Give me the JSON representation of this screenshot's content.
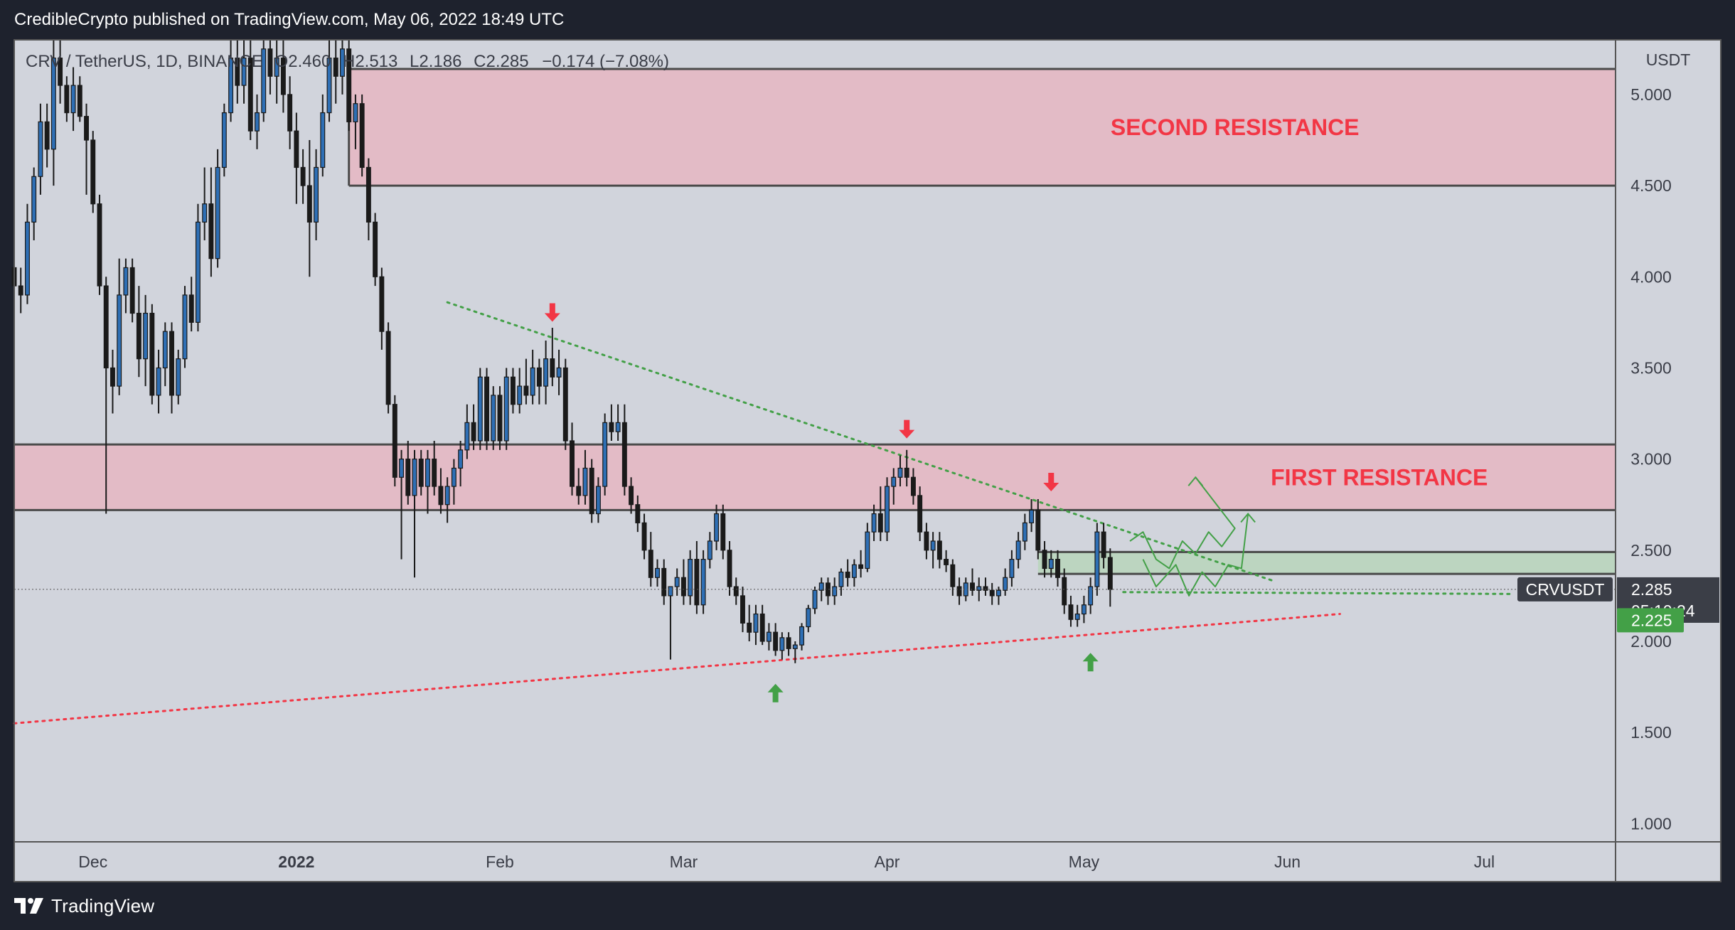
{
  "header": {
    "publisher": "CredibleCrypto published on TradingView.com, May 06, 2022 18:49 UTC"
  },
  "footer": {
    "brand": "TradingView"
  },
  "colors": {
    "background": "#1e222d",
    "pane": "#d1d4dc",
    "up_candle": "#2e6fb5",
    "down_candle": "#1a1a1a",
    "resistance_zone": "#e8b3bf",
    "support_zone": "#b7d4b9",
    "annotation_red": "#f23645",
    "annotation_green": "#43a047",
    "price_tag": "#3b3e47",
    "price_tag_green": "#43a047"
  },
  "chart_data": {
    "type": "candlestick",
    "symbol_line": {
      "symbol": "CRV / TetherUS, 1D, BINANCE",
      "open_label": "O",
      "open": "2.460",
      "high_label": "H",
      "high": "2.513",
      "low_label": "L",
      "low": "2.186",
      "close_label": "C",
      "close": "2.285",
      "change": "−0.174 (−7.08%)"
    },
    "y_axis": {
      "unit": "USDT",
      "range": [
        0.9,
        5.3
      ],
      "ticks": [
        "5.000",
        "4.500",
        "4.000",
        "3.500",
        "3.000",
        "2.500",
        "2.000",
        "1.500",
        "1.000"
      ],
      "tick_values": [
        5.0,
        4.5,
        4.0,
        3.5,
        3.0,
        2.5,
        2.0,
        1.5,
        1.0
      ]
    },
    "x_axis": {
      "labels": [
        "Dec",
        "2022",
        "Feb",
        "Mar",
        "Apr",
        "May",
        "Jun",
        "Jul"
      ],
      "label_days": [
        6,
        37,
        68,
        96,
        127,
        157,
        188,
        218
      ],
      "bold": [
        false,
        true,
        false,
        false,
        false,
        false,
        false,
        false
      ],
      "day_range": [
        -6,
        238
      ]
    },
    "last_price": {
      "label": "CRVUSDT",
      "value": "2.285",
      "price": 2.285,
      "countdown": "05:10:24"
    },
    "level_tag": {
      "value": "2.225",
      "price": 2.225
    },
    "zones": [
      {
        "label": "SECOND RESISTANCE",
        "low": 4.5,
        "high": 5.14,
        "start_day": 45,
        "label_day": 180
      },
      {
        "label": "FIRST RESISTANCE",
        "low": 2.72,
        "high": 3.08,
        "start_day": -6,
        "label_day": 202
      }
    ],
    "support_box": {
      "low": 2.37,
      "high": 2.49,
      "start_day": 150,
      "end_day": 238
    },
    "trendlines": [
      {
        "name": "descending",
        "color": "#43a047",
        "from": [
          60,
          3.86
        ],
        "to": [
          186,
          2.33
        ]
      },
      {
        "name": "ascending",
        "color": "#f23645",
        "from": [
          -6,
          1.55
        ],
        "to": [
          196,
          2.15
        ]
      },
      {
        "name": "horizontal",
        "color": "#43a047",
        "from": [
          163,
          2.27
        ],
        "to": [
          222,
          2.26
        ]
      }
    ],
    "arrows": [
      {
        "dir": "down",
        "day": 76,
        "price": 3.8,
        "color": "#f23645"
      },
      {
        "dir": "down",
        "day": 130,
        "price": 3.16,
        "color": "#f23645"
      },
      {
        "dir": "down",
        "day": 152,
        "price": 2.87,
        "color": "#f23645"
      },
      {
        "dir": "up",
        "day": 110,
        "price": 1.72,
        "color": "#43a047"
      },
      {
        "dir": "up",
        "day": 158,
        "price": 1.89,
        "color": "#43a047"
      }
    ],
    "projections": [
      {
        "color": "#43a047",
        "points": [
          [
            164,
            2.55
          ],
          [
            166,
            2.6
          ],
          [
            168,
            2.45
          ],
          [
            170,
            2.4
          ],
          [
            172,
            2.55
          ],
          [
            174,
            2.48
          ],
          [
            176,
            2.6
          ],
          [
            178,
            2.52
          ],
          [
            180,
            2.62
          ],
          [
            174,
            2.9
          ]
        ],
        "arrow_end": true
      },
      {
        "color": "#43a047",
        "points": [
          [
            166,
            2.45
          ],
          [
            168,
            2.3
          ],
          [
            171,
            2.42
          ],
          [
            173,
            2.25
          ],
          [
            175,
            2.38
          ],
          [
            177,
            2.3
          ],
          [
            179,
            2.42
          ],
          [
            181,
            2.4
          ],
          [
            182,
            2.7
          ]
        ],
        "arrow_end": true
      }
    ],
    "candles": [
      [
        -6,
        4.05,
        4.1,
        3.75,
        3.95
      ],
      [
        -5,
        3.95,
        4.05,
        3.8,
        3.9
      ],
      [
        -4,
        3.9,
        4.4,
        3.85,
        4.3
      ],
      [
        -3,
        4.3,
        4.6,
        4.2,
        4.55
      ],
      [
        -2,
        4.55,
        4.95,
        4.45,
        4.85
      ],
      [
        -1,
        4.85,
        4.95,
        4.6,
        4.7
      ],
      [
        0,
        4.7,
        5.3,
        4.5,
        5.2
      ],
      [
        1,
        5.2,
        5.3,
        4.95,
        5.05
      ],
      [
        2,
        5.05,
        5.1,
        4.85,
        4.9
      ],
      [
        3,
        4.9,
        5.15,
        4.8,
        5.05
      ],
      [
        4,
        5.05,
        5.1,
        4.85,
        4.88
      ],
      [
        5,
        4.88,
        4.95,
        4.45,
        4.75
      ],
      [
        6,
        4.75,
        4.8,
        4.35,
        4.4
      ],
      [
        7,
        4.4,
        4.45,
        3.9,
        3.95
      ],
      [
        8,
        3.95,
        4.0,
        2.7,
        3.5
      ],
      [
        9,
        3.5,
        3.6,
        3.25,
        3.4
      ],
      [
        10,
        3.4,
        4.1,
        3.35,
        3.9
      ],
      [
        11,
        3.9,
        4.1,
        3.8,
        4.05
      ],
      [
        12,
        4.05,
        4.1,
        3.75,
        3.8
      ],
      [
        13,
        3.8,
        3.95,
        3.45,
        3.55
      ],
      [
        14,
        3.55,
        3.9,
        3.4,
        3.8
      ],
      [
        15,
        3.8,
        3.85,
        3.3,
        3.35
      ],
      [
        16,
        3.35,
        3.6,
        3.25,
        3.5
      ],
      [
        17,
        3.5,
        3.75,
        3.4,
        3.7
      ],
      [
        18,
        3.7,
        3.75,
        3.25,
        3.35
      ],
      [
        19,
        3.35,
        3.6,
        3.3,
        3.55
      ],
      [
        20,
        3.55,
        3.95,
        3.5,
        3.9
      ],
      [
        21,
        3.9,
        4.0,
        3.7,
        3.75
      ],
      [
        22,
        3.75,
        4.4,
        3.7,
        4.3
      ],
      [
        23,
        4.3,
        4.6,
        4.2,
        4.4
      ],
      [
        24,
        4.4,
        4.6,
        4.0,
        4.1
      ],
      [
        25,
        4.1,
        4.7,
        4.05,
        4.6
      ],
      [
        26,
        4.6,
        4.95,
        4.55,
        4.9
      ],
      [
        27,
        4.9,
        5.3,
        4.85,
        5.2
      ],
      [
        28,
        5.2,
        5.3,
        4.95,
        5.05
      ],
      [
        29,
        5.05,
        5.3,
        4.95,
        5.2
      ],
      [
        30,
        5.2,
        5.3,
        4.75,
        4.8
      ],
      [
        31,
        4.8,
        5.0,
        4.7,
        4.9
      ],
      [
        32,
        4.9,
        5.3,
        4.85,
        5.25
      ],
      [
        33,
        5.25,
        5.3,
        5.0,
        5.1
      ],
      [
        34,
        5.1,
        5.3,
        4.95,
        5.2
      ],
      [
        35,
        5.2,
        5.3,
        4.9,
        5.0
      ],
      [
        36,
        5.0,
        5.1,
        4.7,
        4.8
      ],
      [
        37,
        4.8,
        4.9,
        4.4,
        4.6
      ],
      [
        38,
        4.6,
        4.7,
        4.4,
        4.5
      ],
      [
        39,
        4.5,
        4.75,
        4.0,
        4.3
      ],
      [
        40,
        4.3,
        4.7,
        4.2,
        4.6
      ],
      [
        41,
        4.6,
        5.0,
        4.55,
        4.9
      ],
      [
        42,
        4.9,
        5.3,
        4.85,
        5.2
      ],
      [
        43,
        5.2,
        5.3,
        4.95,
        5.1
      ],
      [
        44,
        5.1,
        5.3,
        5.0,
        5.25
      ],
      [
        45,
        5.25,
        5.3,
        4.8,
        4.85
      ],
      [
        46,
        4.85,
        5.0,
        4.7,
        4.95
      ],
      [
        47,
        4.95,
        5.0,
        4.55,
        4.6
      ],
      [
        48,
        4.6,
        4.65,
        4.2,
        4.3
      ],
      [
        49,
        4.3,
        4.35,
        3.95,
        4.0
      ],
      [
        50,
        4.0,
        4.05,
        3.6,
        3.7
      ],
      [
        51,
        3.7,
        3.75,
        3.25,
        3.3
      ],
      [
        52,
        3.3,
        3.35,
        2.85,
        2.9
      ],
      [
        53,
        2.9,
        3.05,
        2.45,
        3.0
      ],
      [
        54,
        3.0,
        3.1,
        2.75,
        2.8
      ],
      [
        55,
        2.8,
        3.05,
        2.35,
        3.0
      ],
      [
        56,
        3.0,
        3.05,
        2.8,
        2.85
      ],
      [
        57,
        2.85,
        3.05,
        2.7,
        3.0
      ],
      [
        58,
        3.0,
        3.1,
        2.8,
        2.85
      ],
      [
        59,
        2.85,
        2.95,
        2.7,
        2.75
      ],
      [
        60,
        2.75,
        2.9,
        2.65,
        2.85
      ],
      [
        61,
        2.85,
        3.0,
        2.75,
        2.95
      ],
      [
        62,
        2.95,
        3.1,
        2.85,
        3.05
      ],
      [
        63,
        3.05,
        3.3,
        3.0,
        3.2
      ],
      [
        64,
        3.2,
        3.3,
        3.05,
        3.1
      ],
      [
        65,
        3.1,
        3.5,
        3.05,
        3.45
      ],
      [
        66,
        3.45,
        3.5,
        3.05,
        3.1
      ],
      [
        67,
        3.1,
        3.4,
        3.05,
        3.35
      ],
      [
        68,
        3.35,
        3.4,
        3.05,
        3.1
      ],
      [
        69,
        3.1,
        3.5,
        3.05,
        3.45
      ],
      [
        70,
        3.45,
        3.5,
        3.25,
        3.3
      ],
      [
        71,
        3.3,
        3.5,
        3.25,
        3.4
      ],
      [
        72,
        3.4,
        3.55,
        3.3,
        3.35
      ],
      [
        73,
        3.35,
        3.6,
        3.3,
        3.5
      ],
      [
        74,
        3.5,
        3.55,
        3.3,
        3.4
      ],
      [
        75,
        3.4,
        3.65,
        3.3,
        3.55
      ],
      [
        76,
        3.55,
        3.72,
        3.4,
        3.45
      ],
      [
        77,
        3.45,
        3.6,
        3.35,
        3.5
      ],
      [
        78,
        3.5,
        3.55,
        3.05,
        3.1
      ],
      [
        79,
        3.1,
        3.2,
        2.8,
        2.85
      ],
      [
        80,
        2.85,
        2.95,
        2.75,
        2.8
      ],
      [
        81,
        2.8,
        3.05,
        2.75,
        2.95
      ],
      [
        82,
        2.95,
        3.0,
        2.65,
        2.7
      ],
      [
        83,
        2.7,
        2.9,
        2.65,
        2.85
      ],
      [
        84,
        2.85,
        3.25,
        2.8,
        3.2
      ],
      [
        85,
        3.2,
        3.3,
        3.1,
        3.15
      ],
      [
        86,
        3.15,
        3.3,
        3.1,
        3.2
      ],
      [
        87,
        3.2,
        3.3,
        2.8,
        2.85
      ],
      [
        88,
        2.85,
        2.9,
        2.7,
        2.75
      ],
      [
        89,
        2.75,
        2.8,
        2.6,
        2.65
      ],
      [
        90,
        2.65,
        2.7,
        2.45,
        2.5
      ],
      [
        91,
        2.5,
        2.6,
        2.3,
        2.35
      ],
      [
        92,
        2.35,
        2.45,
        2.3,
        2.4
      ],
      [
        93,
        2.4,
        2.45,
        2.2,
        2.25
      ],
      [
        94,
        2.25,
        2.3,
        1.9,
        2.3
      ],
      [
        95,
        2.3,
        2.4,
        2.25,
        2.35
      ],
      [
        96,
        2.35,
        2.45,
        2.2,
        2.25
      ],
      [
        97,
        2.25,
        2.5,
        2.2,
        2.45
      ],
      [
        98,
        2.45,
        2.55,
        2.15,
        2.2
      ],
      [
        99,
        2.2,
        2.5,
        2.15,
        2.45
      ],
      [
        100,
        2.45,
        2.6,
        2.4,
        2.55
      ],
      [
        101,
        2.55,
        2.75,
        2.5,
        2.7
      ],
      [
        102,
        2.7,
        2.75,
        2.45,
        2.5
      ],
      [
        103,
        2.5,
        2.55,
        2.25,
        2.3
      ],
      [
        104,
        2.3,
        2.35,
        2.2,
        2.25
      ],
      [
        105,
        2.25,
        2.3,
        2.05,
        2.1
      ],
      [
        106,
        2.1,
        2.2,
        2.0,
        2.05
      ],
      [
        107,
        2.05,
        2.2,
        1.98,
        2.15
      ],
      [
        108,
        2.15,
        2.2,
        1.98,
        2.0
      ],
      [
        109,
        2.0,
        2.1,
        1.95,
        2.05
      ],
      [
        110,
        2.05,
        2.1,
        1.92,
        1.95
      ],
      [
        111,
        1.95,
        2.05,
        1.9,
        2.02
      ],
      [
        112,
        2.02,
        2.05,
        1.92,
        1.96
      ],
      [
        113,
        1.96,
        2.0,
        1.88,
        1.98
      ],
      [
        114,
        1.98,
        2.1,
        1.95,
        2.08
      ],
      [
        115,
        2.08,
        2.2,
        2.05,
        2.18
      ],
      [
        116,
        2.18,
        2.3,
        2.15,
        2.28
      ],
      [
        117,
        2.28,
        2.35,
        2.22,
        2.32
      ],
      [
        118,
        2.32,
        2.35,
        2.2,
        2.25
      ],
      [
        119,
        2.25,
        2.35,
        2.2,
        2.3
      ],
      [
        120,
        2.3,
        2.4,
        2.25,
        2.38
      ],
      [
        121,
        2.38,
        2.45,
        2.3,
        2.35
      ],
      [
        122,
        2.35,
        2.45,
        2.3,
        2.42
      ],
      [
        123,
        2.42,
        2.5,
        2.35,
        2.4
      ],
      [
        124,
        2.4,
        2.65,
        2.38,
        2.6
      ],
      [
        125,
        2.6,
        2.75,
        2.55,
        2.7
      ],
      [
        126,
        2.7,
        2.85,
        2.55,
        2.6
      ],
      [
        127,
        2.6,
        2.9,
        2.55,
        2.85
      ],
      [
        128,
        2.85,
        2.95,
        2.75,
        2.9
      ],
      [
        129,
        2.9,
        3.02,
        2.85,
        2.95
      ],
      [
        130,
        2.95,
        3.05,
        2.85,
        2.9
      ],
      [
        131,
        2.9,
        2.95,
        2.75,
        2.8
      ],
      [
        132,
        2.8,
        2.85,
        2.55,
        2.6
      ],
      [
        133,
        2.6,
        2.65,
        2.45,
        2.5
      ],
      [
        134,
        2.5,
        2.6,
        2.4,
        2.55
      ],
      [
        135,
        2.55,
        2.6,
        2.4,
        2.45
      ],
      [
        136,
        2.45,
        2.5,
        2.38,
        2.42
      ],
      [
        137,
        2.42,
        2.45,
        2.25,
        2.3
      ],
      [
        138,
        2.3,
        2.35,
        2.2,
        2.25
      ],
      [
        139,
        2.25,
        2.35,
        2.22,
        2.32
      ],
      [
        140,
        2.32,
        2.4,
        2.25,
        2.28
      ],
      [
        141,
        2.28,
        2.35,
        2.22,
        2.3
      ],
      [
        142,
        2.3,
        2.35,
        2.25,
        2.28
      ],
      [
        143,
        2.28,
        2.32,
        2.2,
        2.25
      ],
      [
        144,
        2.25,
        2.3,
        2.2,
        2.28
      ],
      [
        145,
        2.28,
        2.4,
        2.25,
        2.35
      ],
      [
        146,
        2.35,
        2.5,
        2.3,
        2.45
      ],
      [
        147,
        2.45,
        2.6,
        2.4,
        2.55
      ],
      [
        148,
        2.55,
        2.7,
        2.5,
        2.65
      ],
      [
        149,
        2.65,
        2.78,
        2.6,
        2.72
      ],
      [
        150,
        2.72,
        2.78,
        2.45,
        2.5
      ],
      [
        151,
        2.5,
        2.55,
        2.35,
        2.4
      ],
      [
        152,
        2.4,
        2.5,
        2.35,
        2.45
      ],
      [
        153,
        2.45,
        2.5,
        2.3,
        2.35
      ],
      [
        154,
        2.35,
        2.4,
        2.15,
        2.2
      ],
      [
        155,
        2.2,
        2.25,
        2.08,
        2.12
      ],
      [
        156,
        2.12,
        2.2,
        2.08,
        2.15
      ],
      [
        157,
        2.15,
        2.25,
        2.1,
        2.2
      ],
      [
        158,
        2.2,
        2.35,
        2.15,
        2.3
      ],
      [
        159,
        2.3,
        2.65,
        2.25,
        2.6
      ],
      [
        160,
        2.6,
        2.65,
        2.4,
        2.46
      ],
      [
        161,
        2.46,
        2.51,
        2.19,
        2.285
      ]
    ]
  }
}
